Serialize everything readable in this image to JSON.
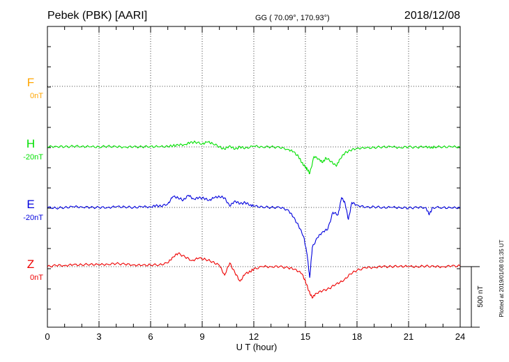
{
  "header": {
    "station": "Pebek (PBK)  [AARI]",
    "coords": "GG ( 70.09°, 170.93°)",
    "date": "2018/12/08"
  },
  "footer": {
    "plotted": "Plotted at 2019/01/08 01:35 UT"
  },
  "chart_data": {
    "type": "line",
    "xlabel": "U T (hour)",
    "xlim": [
      0,
      24
    ],
    "xticks": [
      "0",
      "3",
      "6",
      "9",
      "12",
      "15",
      "18",
      "21",
      "24"
    ],
    "scale_bar_label": "500 nT",
    "series": [
      {
        "name": "F",
        "offset": "0nT",
        "color": "#ffa500",
        "x": [],
        "y": []
      },
      {
        "name": "H",
        "offset": "-20nT",
        "color": "#00e000",
        "x": [
          0,
          0.5,
          1,
          1.5,
          2,
          2.5,
          3,
          3.5,
          4,
          4.5,
          5,
          5.5,
          6,
          6.5,
          7,
          7.3,
          7.6,
          8,
          8.3,
          8.6,
          9,
          9.3,
          9.6,
          10,
          10.3,
          10.6,
          10.9,
          11.2,
          11.5,
          12,
          12.5,
          13,
          13.5,
          14,
          14.3,
          14.6,
          14.8,
          15,
          15.1,
          15.25,
          15.5,
          15.8,
          16,
          16.2,
          16.5,
          16.8,
          17,
          17.3,
          17.6,
          18,
          18.5,
          19,
          19.5,
          20,
          20.5,
          21,
          21.5,
          22,
          22.3,
          22.5,
          23,
          23.5,
          24
        ],
        "y": [
          0,
          5,
          0,
          5,
          5,
          0,
          0,
          5,
          0,
          0,
          0,
          0,
          5,
          0,
          5,
          10,
          15,
          20,
          35,
          40,
          25,
          40,
          30,
          0,
          -20,
          10,
          -20,
          0,
          -10,
          5,
          0,
          0,
          -5,
          -20,
          -40,
          -80,
          -130,
          -170,
          -180,
          -220,
          -80,
          -100,
          -130,
          -90,
          -120,
          -160,
          -100,
          -50,
          -30,
          -10,
          -10,
          -5,
          0,
          0,
          -5,
          0,
          -5,
          5,
          -10,
          0,
          0,
          0,
          0
        ]
      },
      {
        "name": "E",
        "offset": "-20nT",
        "color": "#0000dd",
        "x": [
          0,
          0.5,
          1,
          1.5,
          2,
          2.5,
          3,
          3.5,
          4,
          4.5,
          5,
          5.5,
          6,
          6.3,
          6.6,
          7,
          7.3,
          7.6,
          7.9,
          8.2,
          8.5,
          8.8,
          9.1,
          9.4,
          9.7,
          10,
          10.3,
          10.6,
          10.9,
          11.2,
          11.5,
          11.8,
          12,
          12.5,
          13,
          13.5,
          14,
          14.3,
          14.6,
          14.9,
          15.1,
          15.25,
          15.4,
          15.7,
          16,
          16.3,
          16.6,
          16.9,
          17.1,
          17.3,
          17.5,
          17.7,
          18,
          18.5,
          19,
          19.5,
          20,
          20.5,
          21,
          21.5,
          22,
          22.2,
          22.4,
          23,
          23.5,
          24
        ],
        "y": [
          0,
          -5,
          0,
          5,
          5,
          0,
          0,
          0,
          5,
          5,
          0,
          5,
          5,
          15,
          10,
          30,
          90,
          80,
          60,
          100,
          70,
          80,
          75,
          60,
          80,
          90,
          80,
          10,
          55,
          30,
          40,
          20,
          10,
          5,
          0,
          0,
          -20,
          -80,
          -150,
          -240,
          -390,
          -580,
          -330,
          -250,
          -200,
          -180,
          -40,
          -60,
          80,
          40,
          -100,
          40,
          20,
          0,
          5,
          0,
          0,
          0,
          -5,
          0,
          0,
          -60,
          0,
          0,
          -5,
          0
        ]
      },
      {
        "name": "Z",
        "offset": "0nT",
        "color": "#ee0000",
        "x": [
          0,
          0.5,
          1,
          1.5,
          2,
          2.5,
          3,
          3.5,
          4,
          4.5,
          5,
          5.5,
          6,
          6.5,
          7,
          7.3,
          7.6,
          8,
          8.4,
          8.8,
          9.2,
          9.6,
          10,
          10.3,
          10.6,
          10.9,
          11.2,
          11.5,
          11.8,
          12,
          12.5,
          13,
          13.5,
          14,
          14.4,
          14.8,
          15,
          15.2,
          15.4,
          15.6,
          16,
          16.4,
          16.8,
          17.2,
          17.6,
          18,
          18.5,
          19,
          19.5,
          20,
          20.5,
          21,
          21.5,
          22,
          22.5,
          23,
          23.5,
          24
        ],
        "y": [
          0,
          10,
          10,
          15,
          15,
          20,
          15,
          20,
          25,
          20,
          15,
          10,
          15,
          15,
          30,
          80,
          110,
          80,
          50,
          70,
          60,
          40,
          10,
          -70,
          30,
          -50,
          -120,
          -60,
          -40,
          -20,
          0,
          0,
          0,
          -10,
          -20,
          -60,
          -120,
          -200,
          -260,
          -220,
          -200,
          -180,
          -140,
          -120,
          -60,
          -30,
          -10,
          -5,
          0,
          0,
          5,
          0,
          0,
          5,
          0,
          0,
          5,
          5
        ]
      }
    ]
  }
}
